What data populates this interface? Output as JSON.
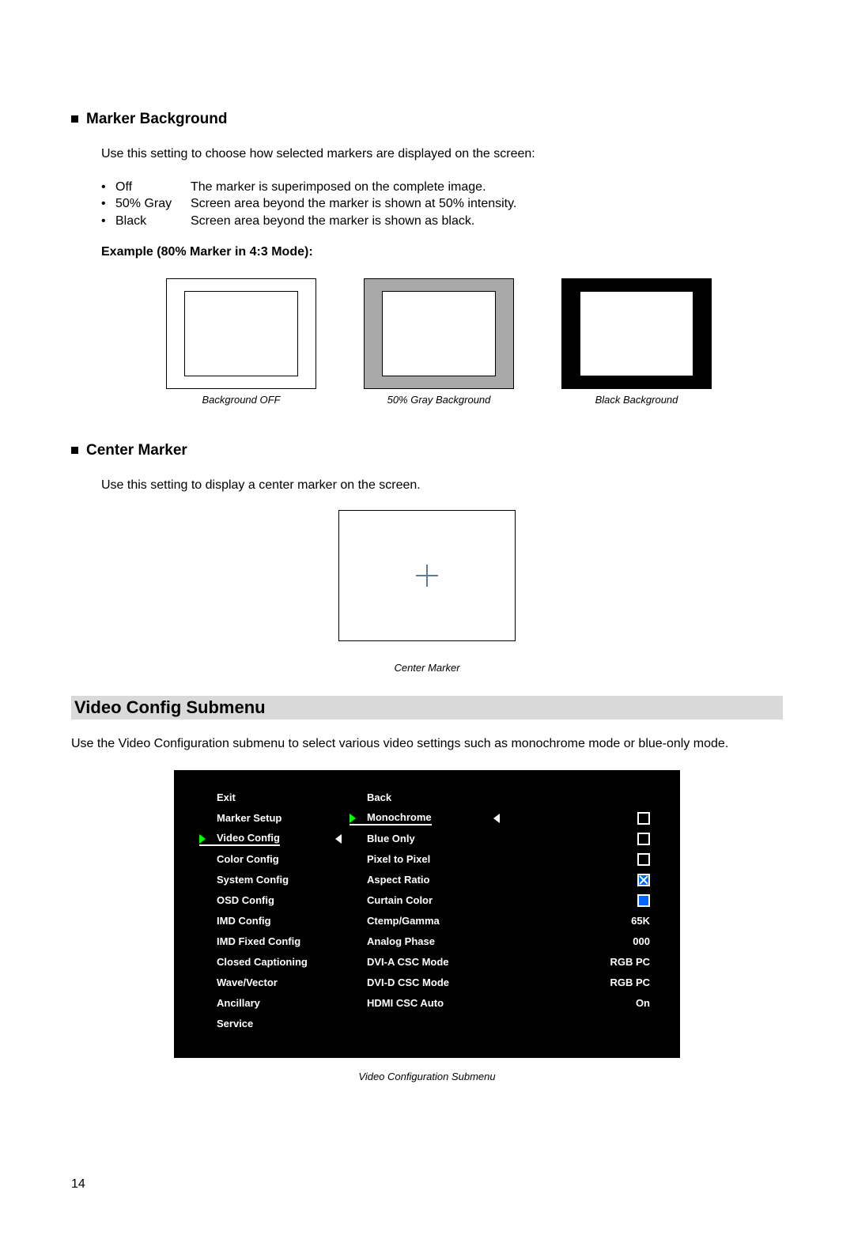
{
  "sec1": {
    "title": "Marker Background",
    "intro": "Use this setting to choose how selected markers are displayed on the screen:",
    "opts": [
      {
        "name": "Off",
        "desc": "The marker is superimposed on the complete image."
      },
      {
        "name": "50% Gray",
        "desc": "Screen area beyond the marker is shown at 50% intensity."
      },
      {
        "name": "Black",
        "desc": "Screen area beyond the marker is shown as black."
      }
    ],
    "example_label": "Example (80% Marker in 4:3 Mode):",
    "captions": [
      "Background OFF",
      "50% Gray Background",
      "Black Background"
    ],
    "bg_colors": [
      "#ffffff",
      "#a8a8a8",
      "#000000"
    ]
  },
  "sec2": {
    "title": "Center Marker",
    "intro": "Use this setting to display a center marker on the screen.",
    "caption": "Center Marker"
  },
  "banner": "Video Config Submenu",
  "submenu_intro": "Use the Video Configuration submenu to select various video settings such as monochrome mode or blue-only mode.",
  "osd": {
    "left": [
      "Exit",
      "Marker Setup",
      "Video Config",
      "Color Config",
      "System Config",
      "OSD Config",
      "IMD Config",
      "IMD Fixed Config",
      "Closed Captioning",
      "Wave/Vector",
      "Ancillary",
      "Service"
    ],
    "mid": [
      "Back",
      "Monochrome",
      "Blue Only",
      "Pixel to Pixel",
      "Aspect Ratio",
      "Curtain Color",
      "Ctemp/Gamma",
      "Analog Phase",
      "DVI-A CSC Mode",
      "DVI-D CSC Mode",
      "HDMI CSC Auto"
    ],
    "right": {
      "ctemp": "65K",
      "phase": "000",
      "dvia": "RGB PC",
      "dvid": "RGB PC",
      "hdmi": "On"
    },
    "caption": "Video Configuration Submenu"
  },
  "page_number": "14"
}
